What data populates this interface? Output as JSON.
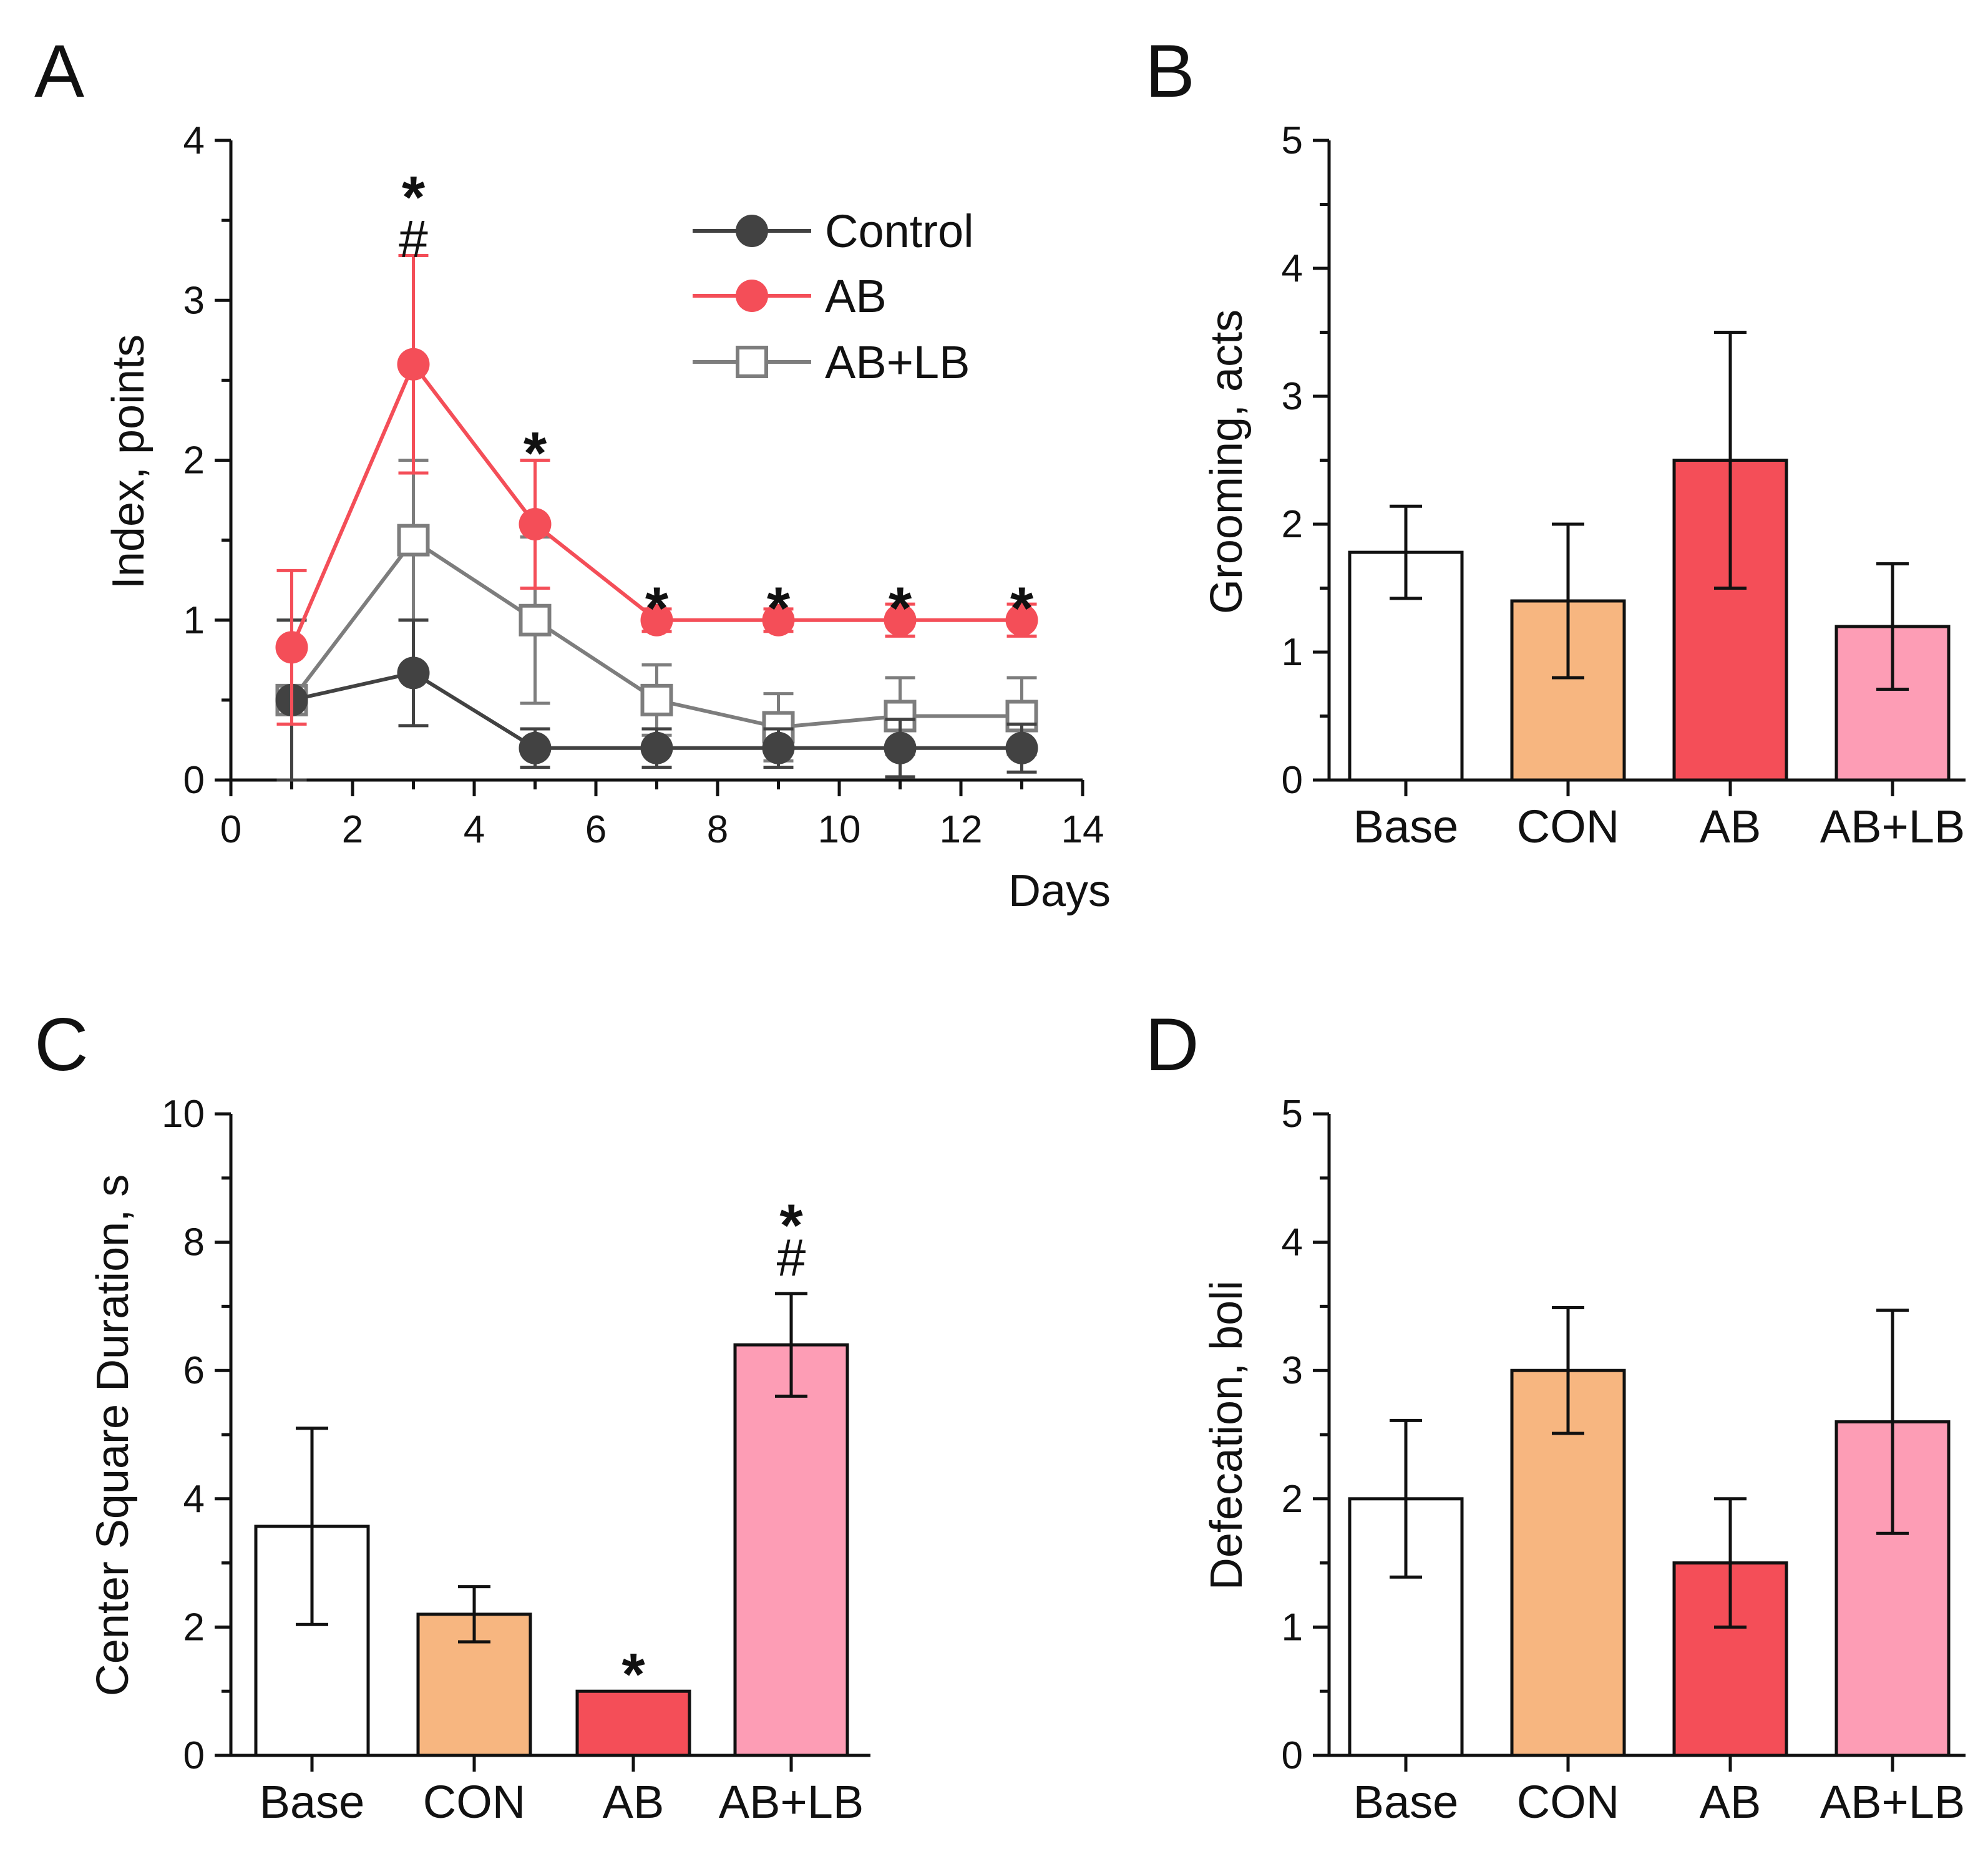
{
  "colors": {
    "control": "#424242",
    "ab": "#F44E58",
    "ablb": "#7D7D7D",
    "bar_base": "#FFFFFF",
    "bar_con": "#F7B680",
    "bar_ab": "#F44E58",
    "bar_ablb": "#FD9DB5"
  },
  "chart_data": [
    {
      "panel": "A",
      "type": "line",
      "xlabel": "Days",
      "ylabel": "Index, points",
      "xlim": [
        0,
        14
      ],
      "ylim": [
        0,
        4
      ],
      "xticks": [
        0,
        2,
        4,
        6,
        8,
        10,
        12,
        14
      ],
      "yticks": [
        0,
        1,
        2,
        3,
        4
      ],
      "legend_position": "top-right",
      "series": [
        {
          "name": "Control",
          "marker": "filled-circle",
          "color": "#424242",
          "x": [
            1,
            3,
            5,
            7,
            9,
            11,
            13
          ],
          "values": [
            0.5,
            0.67,
            0.2,
            0.2,
            0.2,
            0.2,
            0.2
          ],
          "errors": [
            0.5,
            0.33,
            0.12,
            0.12,
            0.12,
            0.18,
            0.15
          ]
        },
        {
          "name": "AB",
          "marker": "filled-circle",
          "color": "#F44E58",
          "x": [
            1,
            3,
            5,
            7,
            9,
            11,
            13
          ],
          "values": [
            0.83,
            2.6,
            1.6,
            1.0,
            1.0,
            1.0,
            1.0
          ],
          "errors": [
            0.48,
            0.68,
            0.4,
            0.07,
            0.07,
            0.1,
            0.1
          ]
        },
        {
          "name": "AB+LB",
          "marker": "open-square",
          "color": "#7D7D7D",
          "x": [
            1,
            3,
            5,
            7,
            9,
            11,
            13
          ],
          "values": [
            0.5,
            1.5,
            1.0,
            0.5,
            0.33,
            0.4,
            0.4
          ],
          "errors": [
            0.5,
            0.5,
            0.52,
            0.22,
            0.21,
            0.24,
            0.24
          ]
        }
      ],
      "annotations": [
        {
          "x": 3,
          "value": 3.72,
          "text": "*"
        },
        {
          "x": 3,
          "value": 3.38,
          "text": "#"
        },
        {
          "x": 5,
          "value": 2.12,
          "text": "*"
        },
        {
          "x": 7,
          "value": 1.15,
          "text": "*"
        },
        {
          "x": 9,
          "value": 1.15,
          "text": "*"
        },
        {
          "x": 11,
          "value": 1.15,
          "text": "*"
        },
        {
          "x": 13,
          "value": 1.15,
          "text": "*"
        }
      ]
    },
    {
      "panel": "B",
      "type": "bar",
      "ylabel": "Grooming, acts",
      "ylim": [
        0,
        5
      ],
      "yticks": [
        0,
        1,
        2,
        3,
        4,
        5
      ],
      "categories": [
        "Base",
        "CON",
        "AB",
        "AB+LB"
      ],
      "values": [
        1.78,
        1.4,
        2.5,
        1.2
      ],
      "errors": [
        0.36,
        0.6,
        1.0,
        0.49
      ],
      "annotations": []
    },
    {
      "panel": "C",
      "type": "bar",
      "ylabel": "Center Square Duration, s",
      "ylim": [
        0,
        10
      ],
      "yticks": [
        0,
        2,
        4,
        6,
        8,
        10
      ],
      "categories": [
        "Base",
        "CON",
        "AB",
        "AB+LB"
      ],
      "values": [
        3.57,
        2.2,
        1.0,
        6.4
      ],
      "errors": [
        1.53,
        0.43,
        0,
        0.8
      ],
      "annotations": [
        {
          "category": 2,
          "value": 1.45,
          "text": "*"
        },
        {
          "category": 3,
          "value": 8.45,
          "text": "*"
        },
        {
          "category": 3,
          "value": 7.75,
          "text": "#"
        }
      ]
    },
    {
      "panel": "D",
      "type": "bar",
      "ylabel": "Defecation, boli",
      "ylim": [
        0,
        5
      ],
      "yticks": [
        0,
        1,
        2,
        3,
        4,
        5
      ],
      "categories": [
        "Base",
        "CON",
        "AB",
        "AB+LB"
      ],
      "values": [
        2.0,
        3.0,
        1.5,
        2.6
      ],
      "errors": [
        0.61,
        0.49,
        0.5,
        0.87
      ],
      "annotations": []
    }
  ]
}
